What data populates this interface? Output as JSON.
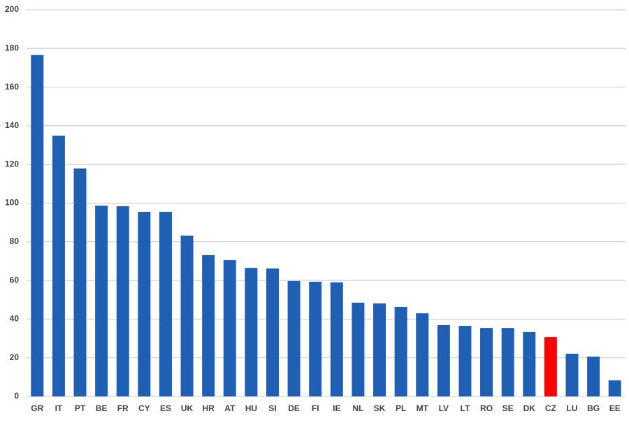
{
  "chart_data": {
    "type": "bar",
    "categories": [
      "GR",
      "IT",
      "PT",
      "BE",
      "FR",
      "CY",
      "ES",
      "UK",
      "HR",
      "AT",
      "HU",
      "SI",
      "DE",
      "FI",
      "IE",
      "NL",
      "SK",
      "PL",
      "MT",
      "LV",
      "LT",
      "RO",
      "SE",
      "DK",
      "CZ",
      "LU",
      "BG",
      "EE"
    ],
    "values": [
      176.6,
      134.9,
      117.9,
      98.7,
      98.4,
      95.5,
      95.5,
      83.2,
      73.1,
      70.5,
      66.5,
      66.2,
      59.7,
      59.3,
      59.0,
      48.5,
      48.1,
      46.3,
      43.0,
      36.9,
      36.5,
      35.4,
      35.4,
      33.3,
      30.7,
      22.1,
      20.6,
      8.3
    ],
    "colors": [
      "#1f5fb4",
      "#1f5fb4",
      "#1f5fb4",
      "#1f5fb4",
      "#1f5fb4",
      "#1f5fb4",
      "#1f5fb4",
      "#1f5fb4",
      "#1f5fb4",
      "#1f5fb4",
      "#1f5fb4",
      "#1f5fb4",
      "#1f5fb4",
      "#1f5fb4",
      "#1f5fb4",
      "#1f5fb4",
      "#1f5fb4",
      "#1f5fb4",
      "#1f5fb4",
      "#1f5fb4",
      "#1f5fb4",
      "#1f5fb4",
      "#1f5fb4",
      "#1f5fb4",
      "#ff0000",
      "#1f5fb4",
      "#1f5fb4",
      "#1f5fb4"
    ],
    "ylim": [
      0,
      200
    ],
    "yticks": [
      0,
      20,
      40,
      60,
      80,
      100,
      120,
      140,
      160,
      180,
      200
    ],
    "grid": true
  }
}
